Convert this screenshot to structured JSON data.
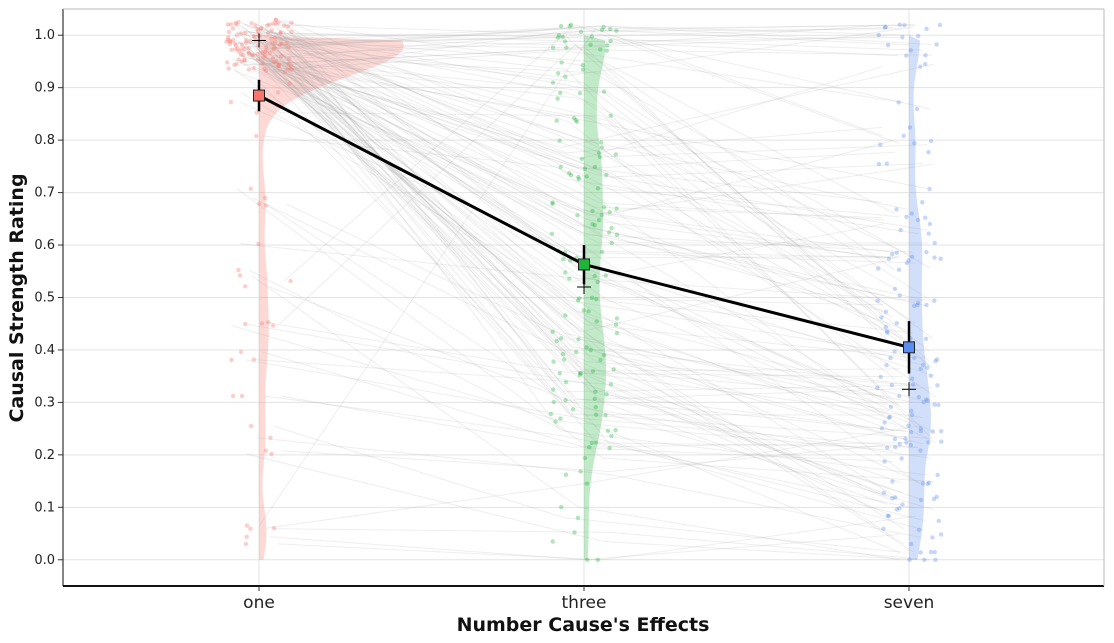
{
  "chart_data": {
    "type": "line",
    "title": "",
    "xlabel": "Number Cause's Effects",
    "ylabel": "Causal Strength Rating",
    "categories": [
      "one",
      "three",
      "seven"
    ],
    "ylim": [
      -0.05,
      1.05
    ],
    "yticks": [
      "0.0",
      "0.1",
      "0.2",
      "0.3",
      "0.4",
      "0.5",
      "0.6",
      "0.7",
      "0.8",
      "0.9",
      "1.0"
    ],
    "grid": true,
    "legend": "none",
    "means": [
      0.885,
      0.563,
      0.405
    ],
    "errors": [
      {
        "low": 0.855,
        "high": 0.915
      },
      {
        "low": 0.525,
        "high": 0.6
      },
      {
        "low": 0.355,
        "high": 0.455
      }
    ],
    "medians": [
      0.99,
      0.52,
      0.325
    ],
    "colors": {
      "one": "#f8766d",
      "three": "#1fb53b",
      "seven": "#5b8def",
      "mean_line": "#000000",
      "paired_lines": "#9e9e9e"
    }
  }
}
